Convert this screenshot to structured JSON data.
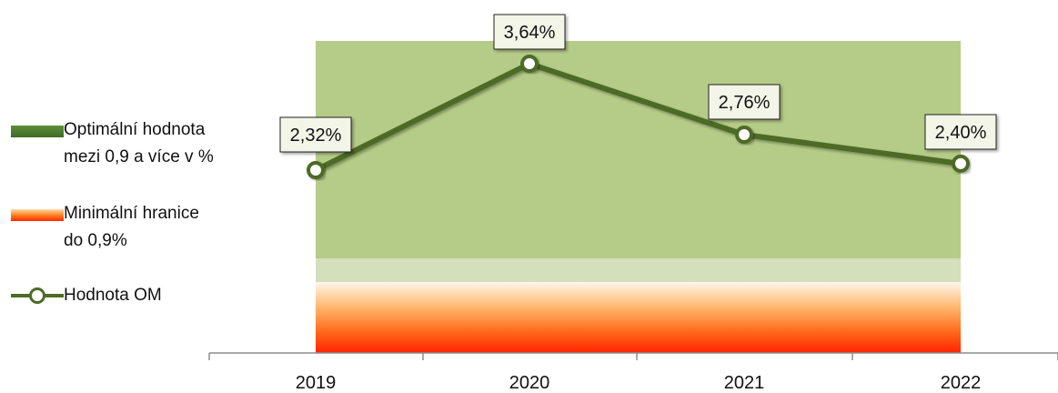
{
  "chart_data": {
    "type": "line",
    "categories": [
      "2019",
      "2020",
      "2021",
      "2022"
    ],
    "series": [
      {
        "name": "Hodnota OM",
        "values": [
          2.32,
          3.64,
          2.76,
          2.4
        ],
        "labels": [
          "2,32%",
          "3,64%",
          "2,76%",
          "2,40%"
        ]
      }
    ],
    "bands": [
      {
        "name": "Optimální hodnota mezi 0,9 a více v %",
        "from": 0.9,
        "to": 4.0,
        "color": "#b5cc88"
      },
      {
        "name": "Minimální hranice do 0,9%",
        "from": 0,
        "to": 0.9,
        "color": "#ff5a14"
      }
    ],
    "ylim": [
      0,
      4.0
    ],
    "grid": false,
    "legend_position": "left"
  },
  "legend": {
    "optimal_line1": "Optimální hodnota",
    "optimal_line2": "mezi 0,9 a více v %",
    "minimal_line1": "Minimální hranice",
    "minimal_line2": "do 0,9%",
    "series": "Hodnota OM"
  },
  "colors": {
    "line": "#4e6b28",
    "band_green": "#b5cc88",
    "band_pale": "#d3e0bb",
    "band_red_top": "#fff3e4",
    "band_red_bottom": "#ff2a00",
    "axis": "#8c8c8c",
    "label_bg": "#f2f5e8"
  }
}
